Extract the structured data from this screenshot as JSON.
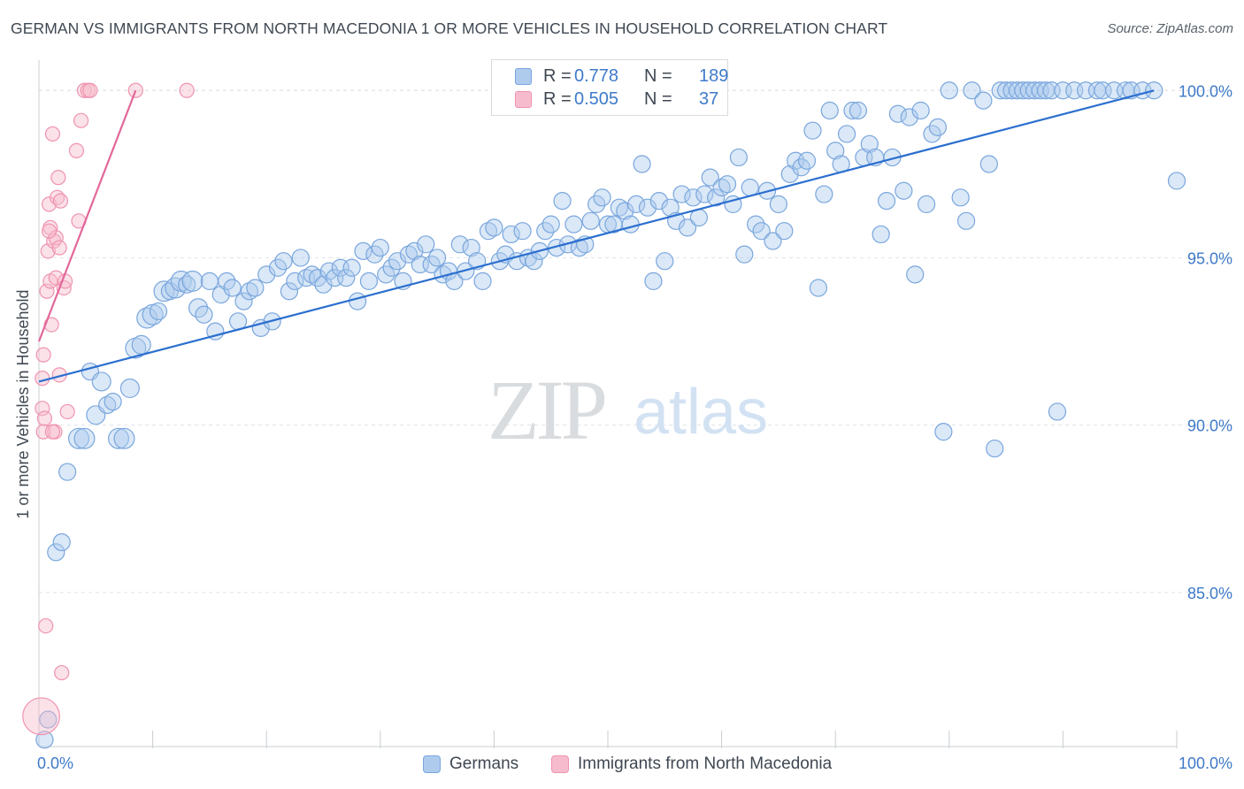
{
  "title": "GERMAN VS IMMIGRANTS FROM NORTH MACEDONIA 1 OR MORE VEHICLES IN HOUSEHOLD CORRELATION CHART",
  "source": "Source: ZipAtlas.com",
  "watermark": {
    "zip": "ZIP",
    "atlas": "atlas"
  },
  "colors": {
    "blue_fill": "#aecbee",
    "blue_stroke": "#7aa6dd",
    "blue_line": "#2b6fcf",
    "pink_fill": "#f6bccd",
    "pink_stroke": "#ef94b0",
    "pink_line": "#e2679a",
    "tick_label": "#3e7ac9",
    "grid": "#dfe3e7"
  },
  "stats": [
    {
      "swatch": "#aecbee",
      "r_label": "R =",
      "r_value": "0.778",
      "n_label": "N =",
      "n_value": "189"
    },
    {
      "swatch": "#f6bccd",
      "r_label": "R =",
      "r_value": "0.505",
      "n_label": "N =",
      "n_value": "37"
    }
  ],
  "legend": [
    {
      "label": "Germans",
      "swatch": "#aecbee"
    },
    {
      "label": "Immigrants from North Macedonia",
      "swatch": "#f6bccd"
    }
  ],
  "chart_data": {
    "type": "scatter",
    "title": "GERMAN VS IMMIGRANTS FROM NORTH MACEDONIA 1 OR MORE VEHICLES IN HOUSEHOLD CORRELATION CHART",
    "xlabel": "",
    "ylabel": "1 or more Vehicles in Household",
    "xlim": [
      0,
      100
    ],
    "ylim": [
      80.5,
      100.8
    ],
    "x_tick_labels": [
      {
        "value": 0,
        "label": "0.0%"
      },
      {
        "value": 100,
        "label": "100.0%"
      }
    ],
    "y_tick_labels": [
      {
        "value": 100,
        "label": "100.0%"
      },
      {
        "value": 95,
        "label": "95.0%"
      },
      {
        "value": 90,
        "label": "90.0%"
      },
      {
        "value": 85,
        "label": "85.0%"
      }
    ],
    "grid": true,
    "legend_position": "bottom",
    "series": [
      {
        "name": "Germans",
        "color": "#aecbee",
        "trend": {
          "x": [
            0,
            98
          ],
          "y": [
            91.3,
            100.0
          ]
        },
        "points": [
          [
            0.5,
            80.6,
            1
          ],
          [
            0.8,
            81.2,
            1
          ],
          [
            1.5,
            86.2,
            1
          ],
          [
            2.0,
            86.5,
            1
          ],
          [
            2.5,
            88.6,
            1
          ],
          [
            3.5,
            89.6,
            1.2
          ],
          [
            4.0,
            89.6,
            1.2
          ],
          [
            4.5,
            91.6,
            1
          ],
          [
            5.0,
            90.3,
            1.1
          ],
          [
            5.5,
            91.3,
            1.1
          ],
          [
            6.0,
            90.6,
            1
          ],
          [
            6.5,
            90.7,
            1
          ],
          [
            7.0,
            89.6,
            1.2
          ],
          [
            7.5,
            89.6,
            1.2
          ],
          [
            8.0,
            91.1,
            1.1
          ],
          [
            8.5,
            92.3,
            1.2
          ],
          [
            9.0,
            92.4,
            1.1
          ],
          [
            9.5,
            93.2,
            1.2
          ],
          [
            10.0,
            93.3,
            1.2
          ],
          [
            10.5,
            93.4,
            1
          ],
          [
            11.0,
            94.0,
            1.2
          ],
          [
            11.5,
            94.0,
            1
          ],
          [
            12.0,
            94.1,
            1.2
          ],
          [
            12.5,
            94.3,
            1.2
          ],
          [
            13.0,
            94.2,
            1
          ],
          [
            13.5,
            94.3,
            1.2
          ],
          [
            14.0,
            93.5,
            1.1
          ],
          [
            14.5,
            93.3,
            1
          ],
          [
            15.0,
            94.3,
            1
          ],
          [
            15.5,
            92.8,
            1
          ],
          [
            16.0,
            93.9,
            1
          ],
          [
            16.5,
            94.3,
            1
          ],
          [
            17.0,
            94.1,
            1
          ],
          [
            17.5,
            93.1,
            1
          ],
          [
            18.0,
            93.7,
            1
          ],
          [
            18.5,
            94.0,
            1
          ],
          [
            19.0,
            94.1,
            1
          ],
          [
            19.5,
            92.9,
            1
          ],
          [
            20.0,
            94.5,
            1
          ],
          [
            20.5,
            93.1,
            1
          ],
          [
            21.0,
            94.7,
            1
          ],
          [
            21.5,
            94.9,
            1
          ],
          [
            22.0,
            94.0,
            1
          ],
          [
            22.5,
            94.3,
            1
          ],
          [
            23.0,
            95.0,
            1
          ],
          [
            23.5,
            94.4,
            1
          ],
          [
            24.0,
            94.5,
            1
          ],
          [
            24.5,
            94.4,
            1
          ],
          [
            25.0,
            94.2,
            1
          ],
          [
            25.5,
            94.6,
            1
          ],
          [
            26.0,
            94.4,
            1
          ],
          [
            26.5,
            94.7,
            1
          ],
          [
            27.0,
            94.4,
            1
          ],
          [
            27.5,
            94.7,
            1
          ],
          [
            28.0,
            93.7,
            1
          ],
          [
            28.5,
            95.2,
            1
          ],
          [
            29.0,
            94.3,
            1
          ],
          [
            29.5,
            95.1,
            1
          ],
          [
            30.0,
            95.3,
            1
          ],
          [
            30.5,
            94.5,
            1
          ],
          [
            31.0,
            94.7,
            1
          ],
          [
            31.5,
            94.9,
            1
          ],
          [
            32.0,
            94.3,
            1
          ],
          [
            32.5,
            95.1,
            1
          ],
          [
            33.0,
            95.2,
            1
          ],
          [
            33.5,
            94.8,
            1
          ],
          [
            34.0,
            95.4,
            1
          ],
          [
            34.5,
            94.8,
            1
          ],
          [
            35.0,
            95.0,
            1
          ],
          [
            35.5,
            94.5,
            1
          ],
          [
            36.0,
            94.6,
            1
          ],
          [
            36.5,
            94.3,
            1
          ],
          [
            37.0,
            95.4,
            1
          ],
          [
            37.5,
            94.6,
            1
          ],
          [
            38.0,
            95.3,
            1
          ],
          [
            38.5,
            94.9,
            1
          ],
          [
            39.0,
            94.3,
            1
          ],
          [
            39.5,
            95.8,
            1
          ],
          [
            40.0,
            95.9,
            1
          ],
          [
            40.5,
            94.9,
            1
          ],
          [
            41.0,
            95.1,
            1
          ],
          [
            41.5,
            95.7,
            1
          ],
          [
            42.0,
            94.9,
            1
          ],
          [
            42.5,
            95.8,
            1
          ],
          [
            43.0,
            95.0,
            1
          ],
          [
            43.5,
            94.9,
            1
          ],
          [
            44.0,
            95.2,
            1
          ],
          [
            44.5,
            95.8,
            1
          ],
          [
            45.0,
            96.0,
            1
          ],
          [
            45.5,
            95.3,
            1
          ],
          [
            46.0,
            96.7,
            1
          ],
          [
            46.5,
            95.4,
            1
          ],
          [
            47.0,
            96.0,
            1
          ],
          [
            47.5,
            95.3,
            1
          ],
          [
            48.0,
            95.4,
            1
          ],
          [
            48.5,
            96.1,
            1
          ],
          [
            49.0,
            96.6,
            1
          ],
          [
            49.5,
            96.8,
            1
          ],
          [
            50.0,
            96.0,
            1
          ],
          [
            50.5,
            96.0,
            1
          ],
          [
            51.0,
            96.5,
            1
          ],
          [
            51.5,
            96.4,
            1
          ],
          [
            52.0,
            96.0,
            1
          ],
          [
            52.5,
            96.6,
            1
          ],
          [
            53.0,
            97.8,
            1
          ],
          [
            53.5,
            96.5,
            1
          ],
          [
            54.0,
            94.3,
            1
          ],
          [
            54.5,
            96.7,
            1
          ],
          [
            55.0,
            94.9,
            1
          ],
          [
            55.5,
            96.5,
            1
          ],
          [
            56.0,
            96.1,
            1
          ],
          [
            56.5,
            96.9,
            1
          ],
          [
            57.0,
            95.9,
            1
          ],
          [
            57.5,
            96.8,
            1
          ],
          [
            58.0,
            96.2,
            1
          ],
          [
            58.5,
            96.9,
            1
          ],
          [
            59.0,
            97.4,
            1
          ],
          [
            59.5,
            96.8,
            1
          ],
          [
            60.0,
            97.1,
            1
          ],
          [
            60.5,
            97.2,
            1
          ],
          [
            61.0,
            96.6,
            1
          ],
          [
            61.5,
            98.0,
            1
          ],
          [
            62.0,
            95.1,
            1
          ],
          [
            62.5,
            97.1,
            1
          ],
          [
            63.0,
            96.0,
            1
          ],
          [
            63.5,
            95.8,
            1
          ],
          [
            64.0,
            97.0,
            1
          ],
          [
            64.5,
            95.5,
            1
          ],
          [
            65.0,
            96.6,
            1
          ],
          [
            65.5,
            95.8,
            1
          ],
          [
            66.0,
            97.5,
            1
          ],
          [
            66.5,
            97.9,
            1
          ],
          [
            67.0,
            97.7,
            1
          ],
          [
            67.5,
            97.9,
            1
          ],
          [
            68.0,
            98.8,
            1
          ],
          [
            68.5,
            94.1,
            1
          ],
          [
            69.0,
            96.9,
            1
          ],
          [
            69.5,
            99.4,
            1
          ],
          [
            70.0,
            98.2,
            1
          ],
          [
            70.5,
            97.8,
            1
          ],
          [
            71.0,
            98.7,
            1
          ],
          [
            71.5,
            99.4,
            1
          ],
          [
            72.0,
            99.4,
            1
          ],
          [
            72.5,
            98.0,
            1
          ],
          [
            73.0,
            98.4,
            1
          ],
          [
            73.5,
            98.0,
            1
          ],
          [
            74.0,
            95.7,
            1
          ],
          [
            74.5,
            96.7,
            1
          ],
          [
            75.0,
            98.0,
            1
          ],
          [
            75.5,
            99.3,
            1
          ],
          [
            76.0,
            97.0,
            1
          ],
          [
            76.5,
            99.2,
            1
          ],
          [
            77.0,
            94.5,
            1
          ],
          [
            77.5,
            99.4,
            1
          ],
          [
            78.0,
            96.6,
            1
          ],
          [
            78.5,
            98.7,
            1
          ],
          [
            79.0,
            98.9,
            1
          ],
          [
            79.5,
            89.8,
            1
          ],
          [
            80.0,
            100,
            1
          ],
          [
            81.0,
            96.8,
            1
          ],
          [
            81.5,
            96.1,
            1
          ],
          [
            82.0,
            100,
            1
          ],
          [
            83.0,
            99.7,
            1
          ],
          [
            83.5,
            97.8,
            1
          ],
          [
            84.0,
            89.3,
            1
          ],
          [
            84.5,
            100,
            1
          ],
          [
            85.0,
            100,
            1
          ],
          [
            85.5,
            100,
            1
          ],
          [
            86.0,
            100,
            1
          ],
          [
            86.5,
            100,
            1
          ],
          [
            87.0,
            100,
            1
          ],
          [
            87.5,
            100,
            1
          ],
          [
            88.0,
            100,
            1
          ],
          [
            88.5,
            100,
            1
          ],
          [
            89.0,
            100,
            1
          ],
          [
            89.5,
            90.4,
            1
          ],
          [
            90.0,
            100,
            1
          ],
          [
            91.0,
            100,
            1
          ],
          [
            92.0,
            100,
            1
          ],
          [
            93.0,
            100,
            1
          ],
          [
            93.5,
            100,
            1
          ],
          [
            94.5,
            100,
            1
          ],
          [
            95.5,
            100,
            1
          ],
          [
            96.0,
            100,
            1
          ],
          [
            97.0,
            100,
            1
          ],
          [
            98.0,
            100,
            1
          ],
          [
            100.0,
            97.3,
            1
          ]
        ]
      },
      {
        "name": "Immigrants from North Macedonia",
        "color": "#f6bccd",
        "trend": {
          "x": [
            0,
            8.5
          ],
          "y": [
            92.5,
            100.0
          ]
        },
        "points": [
          [
            0.2,
            81.3,
            2.6
          ],
          [
            0.3,
            91.4,
            1
          ],
          [
            0.3,
            90.5,
            1
          ],
          [
            0.4,
            89.8,
            1
          ],
          [
            0.4,
            92.1,
            1
          ],
          [
            0.5,
            90.2,
            1
          ],
          [
            0.6,
            84.0,
            1
          ],
          [
            0.7,
            94.0,
            1
          ],
          [
            0.8,
            95.2,
            1
          ],
          [
            0.9,
            96.6,
            1
          ],
          [
            1.0,
            95.9,
            1
          ],
          [
            1.0,
            94.3,
            1
          ],
          [
            1.1,
            93.0,
            1
          ],
          [
            1.2,
            98.7,
            1
          ],
          [
            1.3,
            95.5,
            1
          ],
          [
            1.4,
            89.8,
            1
          ],
          [
            1.5,
            95.6,
            1
          ],
          [
            1.5,
            94.4,
            1
          ],
          [
            1.6,
            96.8,
            1
          ],
          [
            1.7,
            97.4,
            1
          ],
          [
            1.8,
            95.3,
            1
          ],
          [
            1.8,
            91.5,
            1
          ],
          [
            1.9,
            96.7,
            1
          ],
          [
            2.0,
            82.6,
            1
          ],
          [
            2.2,
            94.1,
            1
          ],
          [
            2.3,
            94.3,
            1
          ],
          [
            2.5,
            90.4,
            1
          ],
          [
            3.3,
            98.2,
            1
          ],
          [
            3.5,
            96.1,
            1
          ],
          [
            3.7,
            99.1,
            1
          ],
          [
            4.0,
            100,
            1
          ],
          [
            4.3,
            100,
            1
          ],
          [
            4.5,
            100,
            1
          ],
          [
            8.5,
            100,
            1
          ],
          [
            13.0,
            100,
            1
          ],
          [
            1.2,
            89.8,
            1
          ],
          [
            0.9,
            95.8,
            1
          ]
        ]
      }
    ]
  }
}
